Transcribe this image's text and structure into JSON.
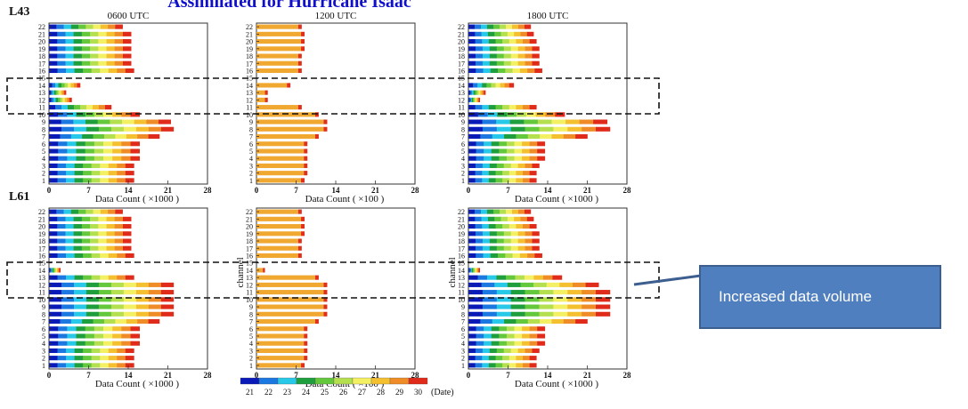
{
  "figure": {
    "title": "Assimilated for Hurricane Isaac",
    "callout": "Increased data volume"
  },
  "legend": {
    "dates": [
      "21",
      "22",
      "23",
      "24",
      "25",
      "26",
      "27",
      "28",
      "29",
      "30"
    ],
    "unit": "(Date)"
  },
  "colors": {
    "dates": [
      "#0a1ab8",
      "#1a78e0",
      "#28c8e8",
      "#1e9e3c",
      "#64c83c",
      "#b4e050",
      "#f4f064",
      "#f4c030",
      "#f08c28",
      "#e02a1a"
    ],
    "single": "#f0a830",
    "end": "#e0301c",
    "axes": "#333333",
    "dash": "#111111"
  },
  "chart_data": [
    {
      "type": "bar",
      "row_label": "L43",
      "title": "0600 UTC",
      "xlabel": "Data Count ( ×1000 )",
      "ylabel": "",
      "xlim": [
        0,
        28
      ],
      "xticks": [
        "0",
        "7",
        "14",
        "21",
        "28"
      ],
      "categories": [
        "1",
        "2",
        "3",
        "4",
        "5",
        "6",
        "7",
        "8",
        "9",
        "10",
        "11",
        "12",
        "13",
        "14",
        "15",
        "16",
        "17",
        "18",
        "19",
        "20",
        "21",
        "22"
      ],
      "values": [
        15,
        15,
        15,
        16,
        16,
        16,
        19.5,
        22,
        21.5,
        16,
        11,
        4,
        3,
        5.5,
        0,
        15,
        14.5,
        14.5,
        14.5,
        14.5,
        14.5,
        13
      ],
      "encoding": "stacked-by-date"
    },
    {
      "type": "bar",
      "row_label": "",
      "title": "1200 UTC",
      "xlabel": "Data Count ( ×100 )",
      "ylabel": "",
      "xlim": [
        0,
        28
      ],
      "xticks": [
        "0",
        "7",
        "14",
        "21",
        "28"
      ],
      "categories": [
        "1",
        "2",
        "3",
        "4",
        "5",
        "6",
        "7",
        "8",
        "9",
        "10",
        "11",
        "12",
        "13",
        "14",
        "15",
        "16",
        "17",
        "18",
        "19",
        "20",
        "21",
        "22"
      ],
      "values": [
        8.5,
        9,
        9,
        9,
        9,
        9,
        11,
        12.5,
        12.5,
        11,
        8,
        2,
        2,
        6,
        0,
        8,
        8,
        8,
        8.5,
        8.5,
        8.5,
        8
      ],
      "encoding": "single"
    },
    {
      "type": "bar",
      "row_label": "",
      "title": "1800 UTC",
      "xlabel": "Data Count ( ×1000 )",
      "ylabel": "",
      "xlim": [
        0,
        28
      ],
      "xticks": [
        "0",
        "7",
        "14",
        "21",
        "28"
      ],
      "categories": [
        "1",
        "2",
        "3",
        "4",
        "5",
        "6",
        "7",
        "8",
        "9",
        "10",
        "11",
        "12",
        "13",
        "14",
        "15",
        "16",
        "17",
        "18",
        "19",
        "20",
        "21",
        "22"
      ],
      "values": [
        12,
        12,
        12.5,
        13.5,
        13.5,
        13.5,
        21,
        25,
        24.5,
        17,
        12,
        2,
        3,
        8,
        0,
        13,
        12.5,
        12.5,
        12.5,
        12,
        11.5,
        11
      ],
      "encoding": "stacked-by-date"
    },
    {
      "type": "bar",
      "row_label": "L61",
      "title": "",
      "xlabel": "Data Count ( ×1000 )",
      "ylabel": "",
      "xlim": [
        0,
        28
      ],
      "xticks": [
        "0",
        "7",
        "14",
        "21",
        "28"
      ],
      "categories": [
        "1",
        "2",
        "3",
        "4",
        "5",
        "6",
        "7",
        "8",
        "9",
        "10",
        "11",
        "12",
        "13",
        "14",
        "15",
        "16",
        "17",
        "18",
        "19",
        "20",
        "21",
        "22"
      ],
      "values": [
        15,
        15,
        15,
        16,
        16,
        16,
        19.5,
        22,
        22,
        22,
        22,
        22,
        15,
        2,
        0,
        15,
        14.5,
        14.5,
        14.5,
        14.5,
        14.5,
        13
      ],
      "encoding": "stacked-by-date"
    },
    {
      "type": "bar",
      "row_label": "",
      "title": "",
      "xlabel": "Data Count ( ×100 )",
      "ylabel": "channel",
      "xlim": [
        0,
        28
      ],
      "xticks": [
        "0",
        "7",
        "14",
        "21",
        "28"
      ],
      "categories": [
        "1",
        "2",
        "3",
        "4",
        "5",
        "6",
        "7",
        "8",
        "9",
        "10",
        "11",
        "12",
        "13",
        "14",
        "15",
        "16",
        "17",
        "18",
        "19",
        "20",
        "21",
        "22"
      ],
      "values": [
        8.5,
        9,
        9,
        9,
        9,
        9,
        11,
        12.5,
        12.5,
        12.5,
        12.5,
        12.5,
        11,
        1.5,
        0,
        8,
        8,
        8,
        8.5,
        8.5,
        8.5,
        8
      ],
      "encoding": "single"
    },
    {
      "type": "bar",
      "row_label": "",
      "title": "",
      "xlabel": "Data Count ( ×1000 )",
      "ylabel": "channel",
      "xlim": [
        0,
        28
      ],
      "xticks": [
        "0",
        "7",
        "14",
        "21",
        "28"
      ],
      "categories": [
        "1",
        "2",
        "3",
        "4",
        "5",
        "6",
        "7",
        "8",
        "9",
        "10",
        "11",
        "12",
        "13",
        "14",
        "15",
        "16",
        "17",
        "18",
        "19",
        "20",
        "21",
        "22"
      ],
      "values": [
        12,
        12,
        12.5,
        13.5,
        13.5,
        13.5,
        21,
        25,
        25,
        25,
        25,
        23,
        16.5,
        2,
        0,
        13,
        12.5,
        12.5,
        12.5,
        12,
        11.5,
        11
      ],
      "encoding": "stacked-by-date"
    }
  ]
}
